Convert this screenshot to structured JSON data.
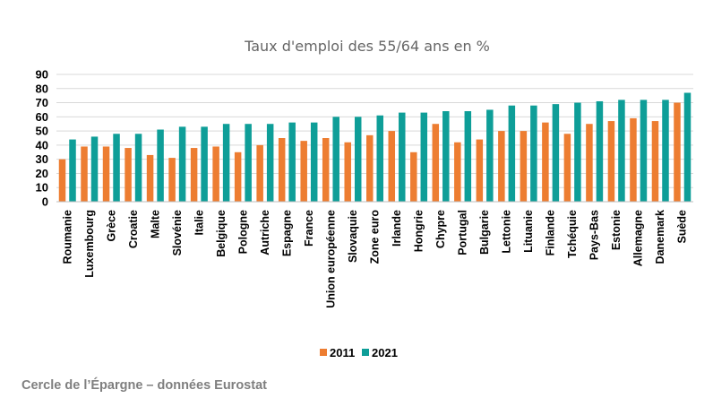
{
  "chart_data": {
    "type": "bar",
    "title": "Taux d'emploi des 55/64 ans en %",
    "categories": [
      "Roumanie",
      "Luxembourg",
      "Grèce",
      "Croatie",
      "Malte",
      "Slovénie",
      "Italie",
      "Belgique",
      "Pologne",
      "Autriche",
      "Espagne",
      "France",
      "Union européenne",
      "Slovaquie",
      "Zone euro",
      "Irlande",
      "Hongrie",
      "Chypre",
      "Portugal",
      "Bulgarie",
      "Lettonie",
      "Lituanie",
      "Finlande",
      "Tchéquie",
      "Pays-Bas",
      "Estonie",
      "Allemagne",
      "Danemark",
      "Suède"
    ],
    "series": [
      {
        "name": "2011",
        "color": "#ED7D31",
        "values": [
          30,
          39,
          39,
          38,
          33,
          31,
          38,
          39,
          35,
          40,
          45,
          43,
          45,
          42,
          47,
          50,
          35,
          55,
          42,
          44,
          50,
          50,
          56,
          48,
          55,
          57,
          59,
          57,
          70
        ]
      },
      {
        "name": "2021",
        "color": "#0E9E98",
        "values": [
          44,
          46,
          48,
          48,
          51,
          53,
          53,
          55,
          55,
          55,
          56,
          56,
          60,
          60,
          61,
          63,
          63,
          64,
          64,
          65,
          68,
          68,
          69,
          70,
          71,
          72,
          72,
          72,
          77
        ]
      }
    ],
    "ylim": [
      0,
      90
    ],
    "yticks": [
      0,
      10,
      20,
      30,
      40,
      50,
      60,
      70,
      80,
      90
    ],
    "grid": true,
    "legend": "bottom",
    "xlabel": "",
    "ylabel": ""
  },
  "source": "Cercle de l’Épargne – données Eurostat"
}
